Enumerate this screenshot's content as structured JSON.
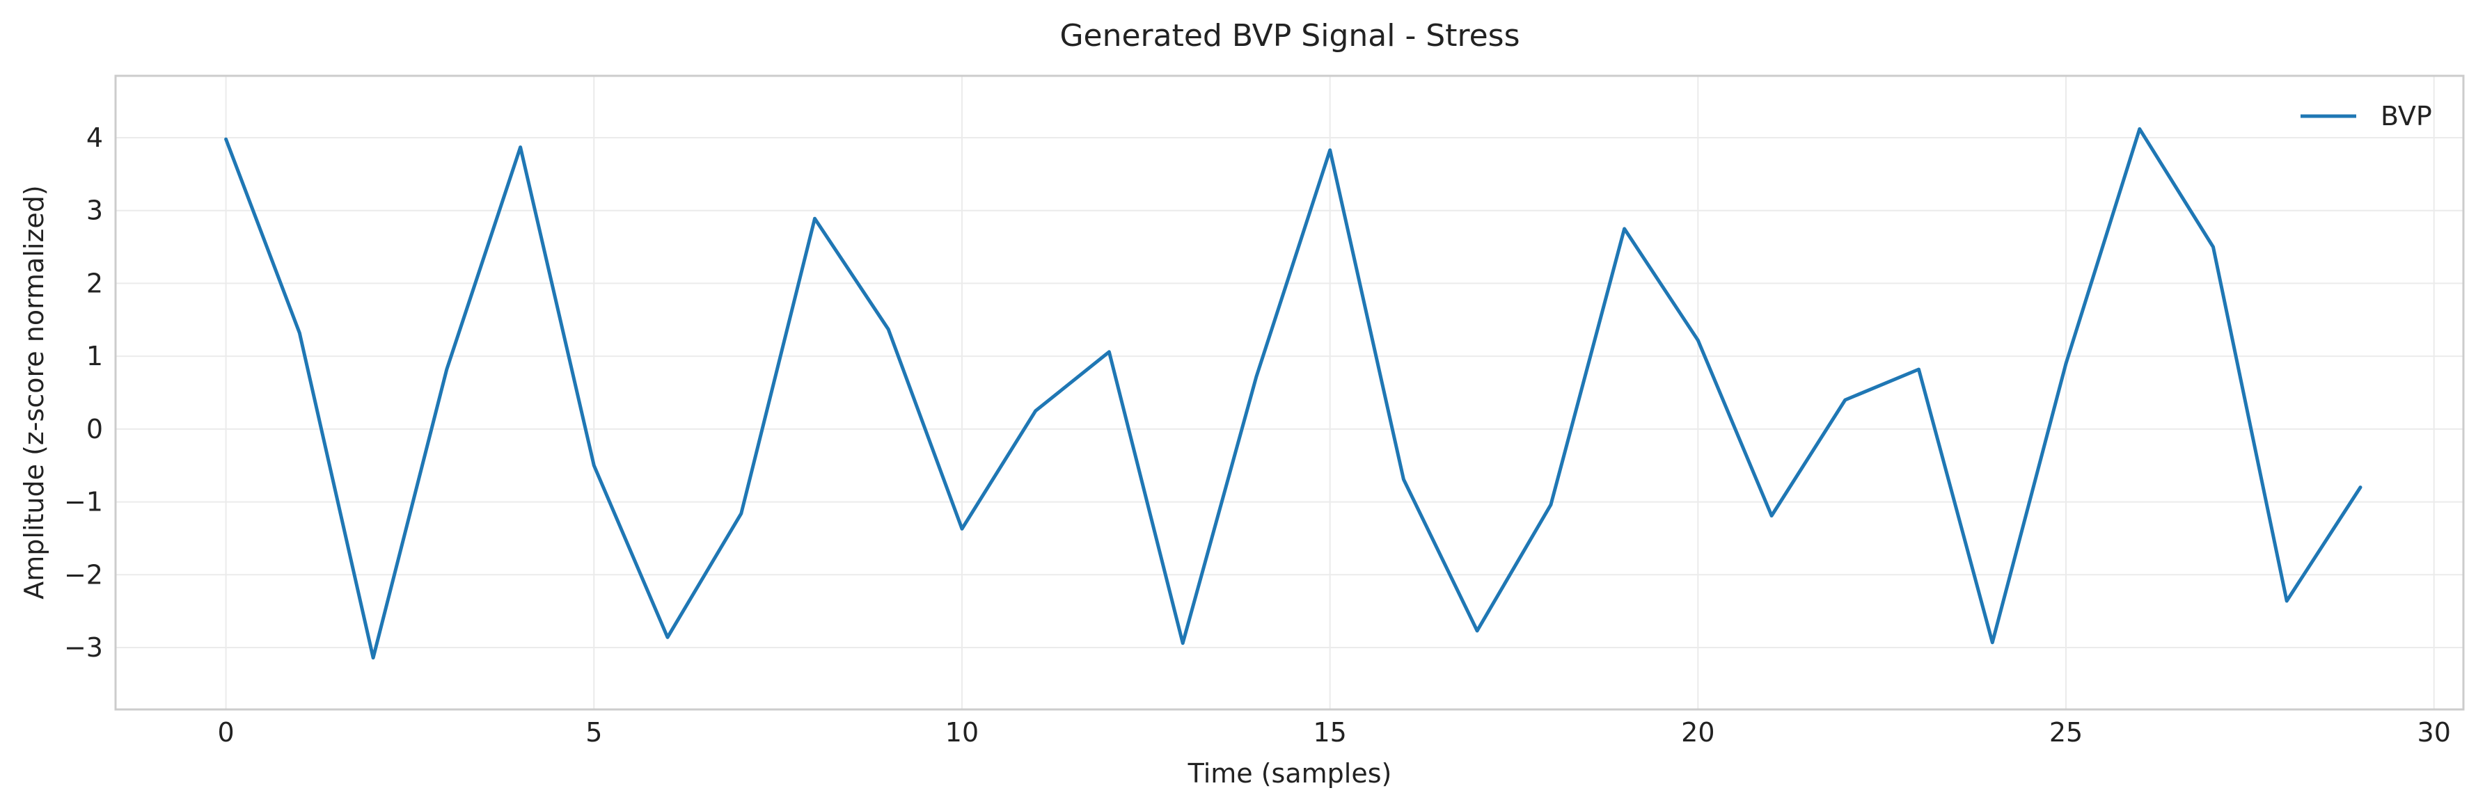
{
  "chart_data": {
    "type": "line",
    "title": "Generated BVP Signal - Stress",
    "xlabel": "Time (samples)",
    "ylabel": "Amplitude (z-score normalized)",
    "xlim": [
      -1.5,
      30.4
    ],
    "ylim": [
      -3.85,
      4.85
    ],
    "xticks": [
      0,
      5,
      10,
      15,
      20,
      25,
      30
    ],
    "xtick_labels": [
      "0",
      "5",
      "10",
      "15",
      "20",
      "25",
      "30"
    ],
    "yticks": [
      -3,
      -2,
      -1,
      0,
      1,
      2,
      3,
      4
    ],
    "ytick_labels": [
      "−3",
      "−2",
      "−1",
      "0",
      "1",
      "2",
      "3",
      "4"
    ],
    "grid": true,
    "legend_position": "top-right",
    "series": [
      {
        "name": "BVP",
        "color": "#1f77b4",
        "x": [
          0,
          1,
          2,
          3,
          4,
          5,
          6,
          7,
          8,
          9,
          10,
          11,
          12,
          13,
          14,
          15,
          16,
          17,
          18,
          19,
          20,
          21,
          22,
          23,
          24,
          25,
          26,
          27,
          28,
          29
        ],
        "values": [
          3.98,
          1.32,
          -3.14,
          0.82,
          3.87,
          -0.5,
          -2.86,
          -1.16,
          2.89,
          1.37,
          -1.37,
          0.25,
          1.06,
          -2.94,
          0.72,
          3.83,
          -0.69,
          -2.77,
          -1.04,
          2.75,
          1.22,
          -1.19,
          0.4,
          0.82,
          -2.93,
          0.9,
          4.12,
          2.5,
          -2.36,
          -0.8
        ]
      }
    ]
  },
  "colors": {
    "axes_edge": "#cccccc",
    "grid": "#ebebeb",
    "text": "#222222"
  }
}
